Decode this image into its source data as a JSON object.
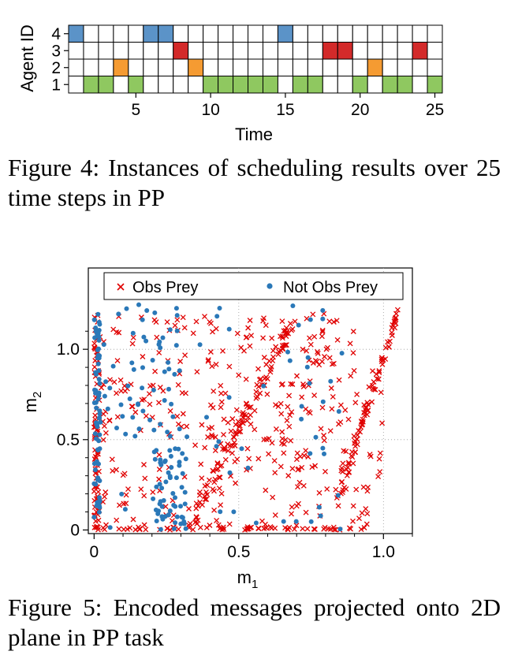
{
  "schedule": {
    "ylabel": "Agent ID",
    "xlabel": "Time",
    "agent_labels": [
      "4",
      "3",
      "2",
      "1"
    ],
    "x_ticks": [
      "5",
      "10",
      "15",
      "20",
      "25"
    ],
    "x_tick_values": [
      5,
      10,
      15,
      20,
      25
    ],
    "colors": {
      "agent4": "#5b93c8",
      "agent3": "#d32a2a",
      "agent2": "#f59b32",
      "agent1": "#8fc860"
    }
  },
  "fig4_caption": "Figure 4:  Instances of scheduling results over 25 time steps in PP",
  "scatter": {
    "xlabel_main": "m",
    "xlabel_sub": "1",
    "ylabel_main": "m",
    "ylabel_sub": "2",
    "x_ticks": [
      "0",
      "0.5",
      "1.0"
    ],
    "y_ticks": [
      "0",
      "0.5",
      "1.0"
    ],
    "legend": {
      "obs": "Obs Prey",
      "notobs": "Not Obs Prey"
    },
    "colors": {
      "obs": "#e00000",
      "notobs": "#2a78b8"
    }
  },
  "fig5_caption": "Figure 5: Encoded messages projected onto 2D plane in PP task",
  "chart_data": [
    {
      "type": "heatmap",
      "xlabel": "Time",
      "ylabel": "Agent ID",
      "x_range": [
        1,
        25
      ],
      "agents": [
        1,
        2,
        3,
        4
      ],
      "active_steps": {
        "4": [
          1,
          6,
          7,
          15
        ],
        "3": [
          8,
          18,
          19,
          24
        ],
        "2": [
          4,
          9,
          21
        ],
        "1": [
          2,
          3,
          5,
          10,
          11,
          12,
          13,
          14,
          16,
          17,
          20,
          22,
          23,
          25
        ]
      }
    },
    {
      "type": "scatter",
      "xlabel": "m1",
      "ylabel": "m2",
      "xlim": [
        -0.02,
        1.1
      ],
      "ylim": [
        -0.02,
        1.45
      ],
      "grid": true,
      "legend_position": "top",
      "series": [
        {
          "name": "Obs Prey",
          "marker": "x",
          "points_count": 700,
          "x_range": [
            0,
            1.05
          ],
          "y_range": [
            0,
            1.27
          ]
        },
        {
          "name": "Not Obs Prey",
          "marker": "dot",
          "points_count": 230,
          "x_range": [
            0,
            0.87
          ],
          "y_range": [
            0,
            1.25
          ]
        }
      ]
    }
  ]
}
